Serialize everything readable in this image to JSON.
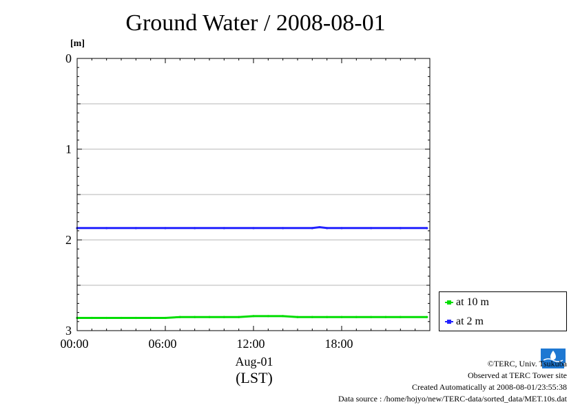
{
  "chart_data": {
    "type": "line",
    "title": "Ground Water / 2008-08-01",
    "ylabel": "[m]",
    "y_inverted": true,
    "ylim": [
      0,
      3
    ],
    "y_ticks": [
      "0",
      "1",
      "2",
      "3"
    ],
    "y_grid_values": [
      0.5,
      1,
      1.5,
      2,
      2.5
    ],
    "x_ticks": [
      {
        "hour": 0,
        "label": "00:00"
      },
      {
        "hour": 6,
        "label": "06:00"
      },
      {
        "hour": 12,
        "label": "12:00"
      },
      {
        "hour": 18,
        "label": "18:00"
      }
    ],
    "x_date_label": "Aug-01",
    "x_axis_label": "(LST)",
    "xlim_hours": [
      0,
      24
    ],
    "grid": true,
    "legend_position": "bottom-right",
    "series": [
      {
        "name": "at 10 m",
        "color": "#00dd00",
        "x_hours": [
          0,
          1,
          2,
          3,
          4,
          5,
          6,
          7,
          8,
          9,
          10,
          11,
          12,
          13,
          14,
          15,
          16,
          17,
          18,
          19,
          20,
          21,
          22,
          23.8
        ],
        "values": [
          2.86,
          2.86,
          2.86,
          2.86,
          2.86,
          2.86,
          2.86,
          2.85,
          2.85,
          2.85,
          2.85,
          2.85,
          2.84,
          2.84,
          2.84,
          2.85,
          2.85,
          2.85,
          2.85,
          2.85,
          2.85,
          2.85,
          2.85,
          2.85
        ]
      },
      {
        "name": "at 2 m",
        "color": "#2222ff",
        "x_hours": [
          0,
          2,
          4,
          6,
          8,
          10,
          12,
          14,
          16,
          16.5,
          17,
          18,
          20,
          22,
          23.8
        ],
        "values": [
          1.87,
          1.87,
          1.87,
          1.87,
          1.87,
          1.87,
          1.87,
          1.87,
          1.87,
          1.86,
          1.87,
          1.87,
          1.87,
          1.87,
          1.87
        ]
      }
    ]
  },
  "credits": {
    "copyright": "©TERC, Univ. Tsukuba",
    "observed": "Observed at TERC Tower site",
    "created": "Created Automatically at 2008-08-01/23:55:38",
    "source": "Data source : /home/hojyo/new/TERC-data/sorted_data/MET.10s.dat",
    "logo_text": "TERC"
  }
}
